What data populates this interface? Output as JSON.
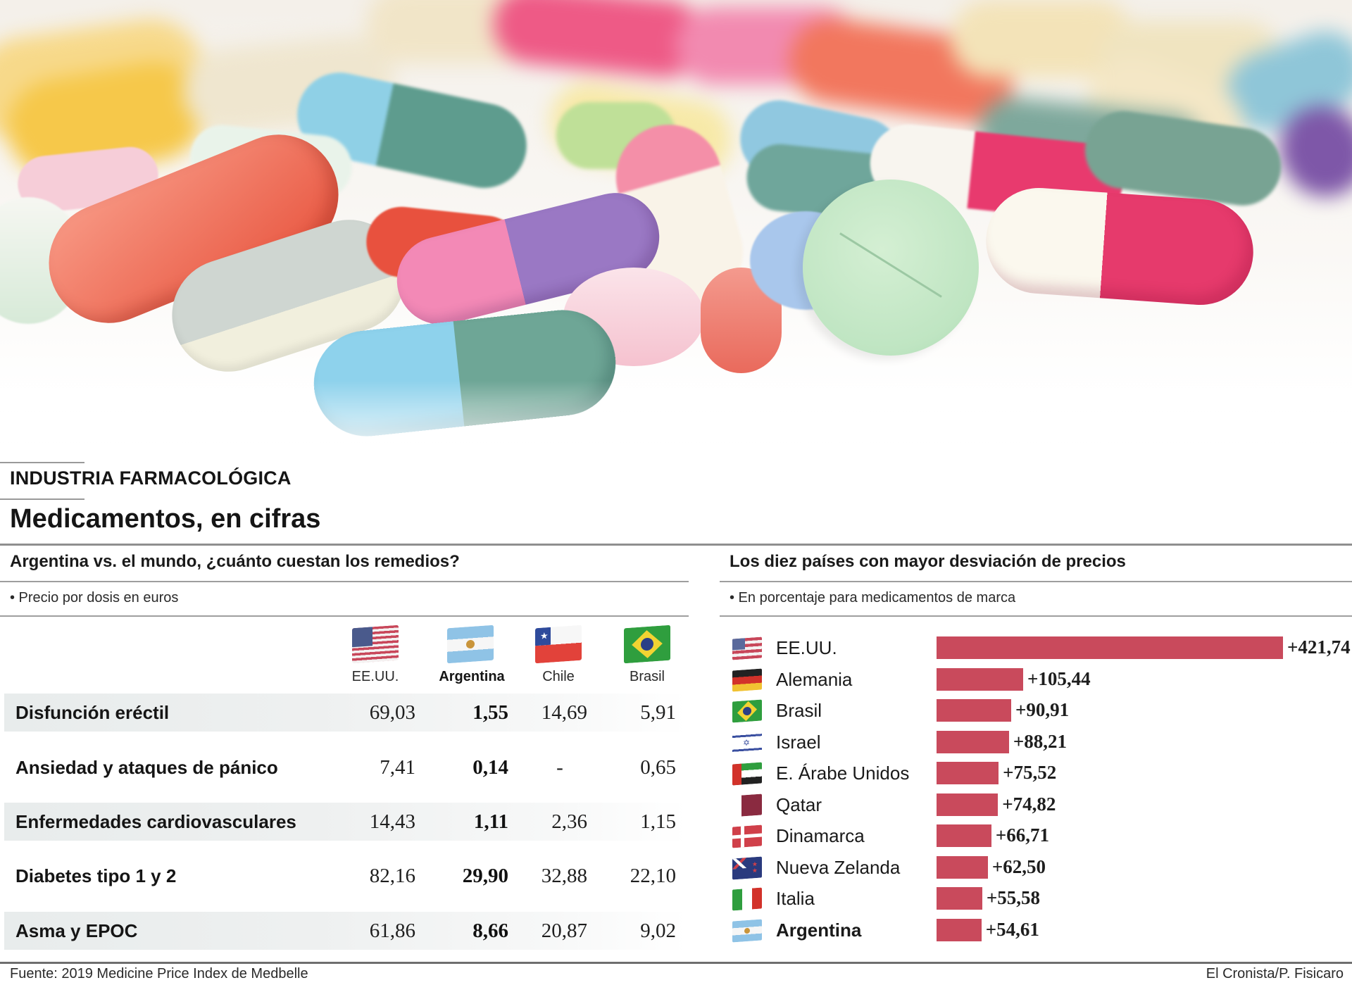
{
  "header": {
    "kicker": "INDUSTRIA FARMACOLÓGICA",
    "title": "Medicamentos, en cifras"
  },
  "left_panel": {
    "title": "Argentina vs. el mundo, ¿cuánto cuestan los remedios?",
    "subtitle": "• Precio por dosis en euros",
    "columns": [
      {
        "label": "EE.UU.",
        "flag": "usa-flag-icon",
        "highlight": false
      },
      {
        "label": "Argentina",
        "flag": "argentina-flag-icon",
        "highlight": true
      },
      {
        "label": "Chile",
        "flag": "chile-flag-icon",
        "highlight": false
      },
      {
        "label": "Brasil",
        "flag": "brazil-flag-icon",
        "highlight": false
      }
    ],
    "rows": [
      {
        "label": "Disfunción eréctil",
        "values": [
          "69,03",
          "1,55",
          "14,69",
          "5,91"
        ]
      },
      {
        "label": "Ansiedad y ataques de pánico",
        "values": [
          "7,41",
          "0,14",
          "-",
          "0,65"
        ]
      },
      {
        "label": "Enfermedades cardiovasculares",
        "values": [
          "14,43",
          "1,11",
          "2,36",
          "1,15"
        ]
      },
      {
        "label": "Diabetes tipo 1 y 2",
        "values": [
          "82,16",
          "29,90",
          "32,88",
          "22,10"
        ]
      },
      {
        "label": "Asma y EPOC",
        "values": [
          "61,86",
          "8,66",
          "20,87",
          "9,02"
        ]
      }
    ]
  },
  "right_panel": {
    "title": "Los diez países con mayor desviación de precios",
    "subtitle": "• En porcentaje para medicamentos de marca"
  },
  "chart_data": {
    "type": "bar",
    "orientation": "horizontal",
    "title": "Los diez países con mayor desviación de precios",
    "subtitle": "En porcentaje para medicamentos de marca",
    "categories": [
      "EE.UU.",
      "Alemania",
      "Brasil",
      "Israel",
      "E. Árabe Unidos",
      "Qatar",
      "Dinamarca",
      "Nueva Zelanda",
      "Italia",
      "Argentina"
    ],
    "values": [
      421.74,
      105.44,
      90.91,
      88.21,
      75.52,
      74.82,
      66.71,
      62.5,
      55.58,
      54.61
    ],
    "labels": [
      "+421,74",
      "+105,44",
      "+90,91",
      "+88,21",
      "+75,52",
      "+74,82",
      "+66,71",
      "+62,50",
      "+55,58",
      "+54,61"
    ],
    "flags": [
      "usa-flag-icon",
      "germany-flag-icon",
      "brazil-flag-icon",
      "israel-flag-icon",
      "uae-flag-icon",
      "qatar-flag-icon",
      "denmark-flag-icon",
      "new-zealand-flag-icon",
      "italy-flag-icon",
      "argentina-flag-icon"
    ],
    "highlight": "Argentina",
    "xlim": [
      0,
      421.74
    ],
    "grid": false,
    "bar_color": "#c94a5c"
  },
  "footer": {
    "source": "Fuente: 2019 Medicine Price Index de Medbelle",
    "credit": "El Cronista/P. Fisicaro"
  }
}
